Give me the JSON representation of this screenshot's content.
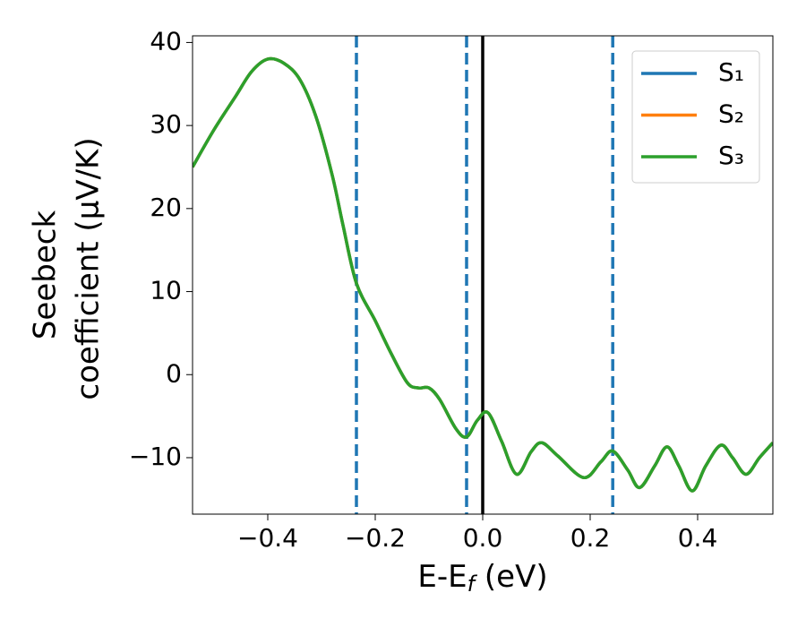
{
  "chart_data": {
    "type": "line",
    "x_label_parts": [
      "E-E",
      "f",
      " (eV)"
    ],
    "y_label_lines": [
      "Seebeck",
      "coefficient  (μV/K)"
    ],
    "x": [
      -0.54,
      -0.5,
      -0.46,
      -0.43,
      -0.4,
      -0.37,
      -0.34,
      -0.31,
      -0.28,
      -0.26,
      -0.235,
      -0.2,
      -0.17,
      -0.14,
      -0.12,
      -0.1,
      -0.08,
      -0.05,
      -0.03,
      -0.01,
      0.01,
      0.035,
      0.063,
      0.09,
      0.11,
      0.14,
      0.188,
      0.22,
      0.242,
      0.27,
      0.292,
      0.32,
      0.343,
      0.365,
      0.39,
      0.415,
      0.443,
      0.465,
      0.49,
      0.515,
      0.54
    ],
    "series": [
      {
        "name": "S₁",
        "color": "#1f77b4",
        "values": [
          25,
          29.5,
          33.5,
          36.5,
          38,
          37.5,
          35.5,
          31,
          24,
          18,
          11,
          6.5,
          2.5,
          -1,
          -1.6,
          -1.6,
          -3,
          -6.5,
          -7.5,
          -5.5,
          -4.6,
          -8,
          -12,
          -9.3,
          -8.2,
          -9.8,
          -12.4,
          -10.5,
          -9.2,
          -11.5,
          -13.6,
          -11,
          -8.7,
          -11,
          -14,
          -11,
          -8.5,
          -10,
          -12,
          -10,
          -8.2
        ]
      },
      {
        "name": "S₂",
        "color": "#ff7f0e",
        "values": [
          25,
          29.5,
          33.5,
          36.5,
          38,
          37.5,
          35.5,
          31,
          24,
          18,
          11,
          6.5,
          2.5,
          -1,
          -1.6,
          -1.6,
          -3,
          -6.5,
          -7.5,
          -5.5,
          -4.6,
          -8,
          -12,
          -9.3,
          -8.2,
          -9.8,
          -12.4,
          -10.5,
          -9.2,
          -11.5,
          -13.6,
          -11,
          -8.7,
          -11,
          -14,
          -11,
          -8.5,
          -10,
          -12,
          -10,
          -8.2
        ]
      },
      {
        "name": "S₃",
        "color": "#2ca02c",
        "values": [
          25,
          29.5,
          33.5,
          36.5,
          38,
          37.5,
          35.5,
          31,
          24,
          18,
          11,
          6.5,
          2.5,
          -1,
          -1.6,
          -1.6,
          -3,
          -6.5,
          -7.5,
          -5.5,
          -4.6,
          -8,
          -12,
          -9.3,
          -8.2,
          -9.8,
          -12.4,
          -10.5,
          -9.2,
          -11.5,
          -13.6,
          -11,
          -8.7,
          -11,
          -14,
          -11,
          -8.5,
          -10,
          -12,
          -10,
          -8.2
        ]
      }
    ],
    "vlines": [
      {
        "x": -0.235,
        "color": "#1f77b4",
        "style": "dashed"
      },
      {
        "x": -0.03,
        "color": "#1f77b4",
        "style": "dashed"
      },
      {
        "x": 0.242,
        "color": "#1f77b4",
        "style": "dashed"
      },
      {
        "x": 0,
        "color": "#000000",
        "style": "solid"
      }
    ],
    "xlim": [
      -0.54,
      0.54
    ],
    "ylim": [
      -16.8,
      40.8
    ],
    "xticks": [
      {
        "value": -0.4,
        "label": "−0.4"
      },
      {
        "value": -0.2,
        "label": "−0.2"
      },
      {
        "value": 0,
        "label": "0.0"
      },
      0.2,
      0.4
    ],
    "yticks": [
      {
        "value": -10,
        "label": "−10"
      },
      0,
      10,
      20,
      30,
      40
    ],
    "legend": "upper right",
    "grid": false
  }
}
